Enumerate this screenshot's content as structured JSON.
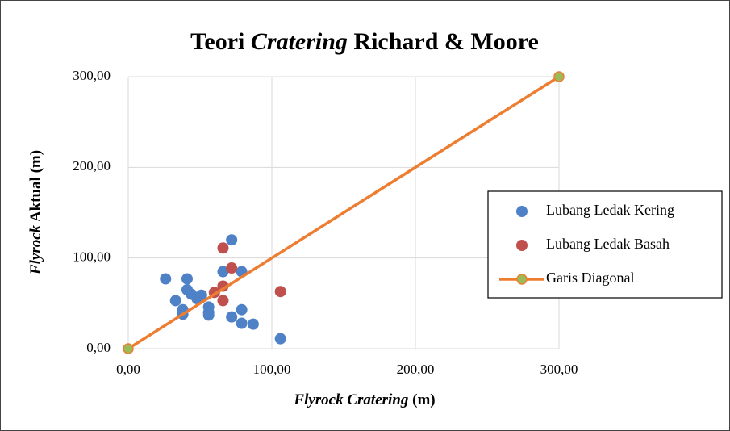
{
  "chart_data": {
    "type": "scatter",
    "title": [
      "Teori",
      "Cratering",
      "Richard & Moore"
    ],
    "title_italic": [
      false,
      true,
      false
    ],
    "xlabel": [
      "Flyrock Cratering",
      "(m)"
    ],
    "xlabel_italic": [
      true,
      false
    ],
    "ylabel": [
      "Flyrock",
      "Aktual (m)"
    ],
    "ylabel_italic": [
      true,
      false
    ],
    "xlim": [
      0,
      300
    ],
    "ylim": [
      0,
      300
    ],
    "xticks": [
      {
        "value": 0,
        "label": "0,00"
      },
      {
        "value": 100,
        "label": "100,00"
      },
      {
        "value": 200,
        "label": "200,00"
      },
      {
        "value": 300,
        "label": "300,00"
      }
    ],
    "yticks": [
      {
        "value": 0,
        "label": "0,00"
      },
      {
        "value": 100,
        "label": "100,00"
      },
      {
        "value": 200,
        "label": "200,00"
      },
      {
        "value": 300,
        "label": "300,00"
      }
    ],
    "grid": true,
    "legend": "right",
    "series": [
      {
        "name": "Lubang Ledak Kering",
        "color": "#4f81c7",
        "x": [
          26,
          33,
          38,
          38,
          41,
          41,
          44,
          48,
          51,
          56,
          56,
          56,
          66,
          72,
          72,
          79,
          79,
          79,
          87,
          106
        ],
        "values": [
          77,
          53,
          43,
          38,
          77,
          65,
          60,
          55,
          59,
          46,
          40,
          37,
          85,
          120,
          35,
          85,
          43,
          28,
          27,
          11
        ]
      },
      {
        "name": "Lubang Ledak Basah",
        "color": "#c0504d",
        "x": [
          66,
          60,
          66,
          66,
          72,
          106
        ],
        "values": [
          111,
          62,
          69,
          53,
          89,
          63
        ]
      },
      {
        "name": "Garis Diagonal",
        "color": "#ed7d31",
        "marker_color": "#9bbb59",
        "line": true,
        "x": [
          0,
          300
        ],
        "values": [
          0,
          300
        ]
      }
    ]
  }
}
